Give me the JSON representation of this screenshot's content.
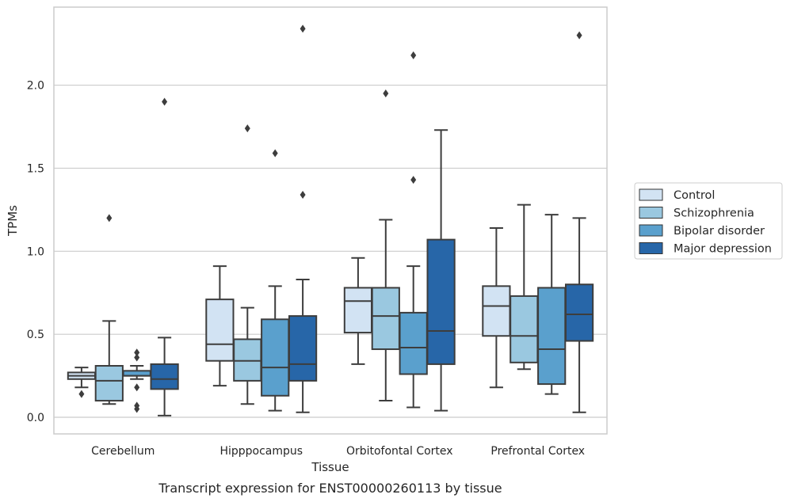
{
  "caption": "Transcript expression for ENST00000260113 by tissue",
  "chart_data": {
    "type": "box",
    "xlabel": "Tissue",
    "ylabel": "TPMs",
    "ylim": [
      -0.1,
      2.47
    ],
    "yticks": [
      0.0,
      0.5,
      1.0,
      1.5,
      2.0
    ],
    "ytick_labels": [
      "0.0",
      "0.5",
      "1.0",
      "1.5",
      "2.0"
    ],
    "grid": "horizontal",
    "legend_position": "right-outside",
    "categories": [
      "Cerebellum",
      "Hipppocampus",
      "Orbitofontal Cortex",
      "Prefrontal Cortex"
    ],
    "series": [
      {
        "name": "Control",
        "color": "#d2e3f3",
        "boxes": [
          {
            "whislo": 0.18,
            "q1": 0.23,
            "med": 0.25,
            "q3": 0.27,
            "whishi": 0.3,
            "fliers": [
              0.14
            ]
          },
          {
            "whislo": 0.19,
            "q1": 0.34,
            "med": 0.44,
            "q3": 0.71,
            "whishi": 0.91,
            "fliers": []
          },
          {
            "whislo": 0.32,
            "q1": 0.51,
            "med": 0.7,
            "q3": 0.78,
            "whishi": 0.96,
            "fliers": []
          },
          {
            "whislo": 0.18,
            "q1": 0.49,
            "med": 0.67,
            "q3": 0.79,
            "whishi": 1.14,
            "fliers": []
          }
        ]
      },
      {
        "name": "Schizophrenia",
        "color": "#9ac8e0",
        "boxes": [
          {
            "whislo": 0.08,
            "q1": 0.1,
            "med": 0.22,
            "q3": 0.31,
            "whishi": 0.58,
            "fliers": [
              1.2
            ]
          },
          {
            "whislo": 0.08,
            "q1": 0.22,
            "med": 0.34,
            "q3": 0.47,
            "whishi": 0.66,
            "fliers": [
              1.74
            ]
          },
          {
            "whislo": 0.1,
            "q1": 0.41,
            "med": 0.61,
            "q3": 0.78,
            "whishi": 1.19,
            "fliers": [
              1.95
            ]
          },
          {
            "whislo": 0.29,
            "q1": 0.33,
            "med": 0.49,
            "q3": 0.73,
            "whishi": 1.28,
            "fliers": []
          }
        ]
      },
      {
        "name": "Bipolar disorder",
        "color": "#5aa0cd",
        "boxes": [
          {
            "whislo": 0.23,
            "q1": 0.25,
            "med": 0.25,
            "q3": 0.28,
            "whishi": 0.31,
            "fliers": [
              0.39,
              0.36,
              0.18,
              0.07,
              0.05
            ]
          },
          {
            "whislo": 0.04,
            "q1": 0.13,
            "med": 0.3,
            "q3": 0.59,
            "whishi": 0.79,
            "fliers": [
              1.59
            ]
          },
          {
            "whislo": 0.06,
            "q1": 0.26,
            "med": 0.42,
            "q3": 0.63,
            "whishi": 0.91,
            "fliers": [
              1.43,
              2.18
            ]
          },
          {
            "whislo": 0.14,
            "q1": 0.2,
            "med": 0.41,
            "q3": 0.78,
            "whishi": 1.22,
            "fliers": []
          }
        ]
      },
      {
        "name": "Major depression",
        "color": "#2766a8",
        "boxes": [
          {
            "whislo": 0.01,
            "q1": 0.17,
            "med": 0.23,
            "q3": 0.32,
            "whishi": 0.48,
            "fliers": [
              1.9
            ]
          },
          {
            "whislo": 0.03,
            "q1": 0.22,
            "med": 0.32,
            "q3": 0.61,
            "whishi": 0.83,
            "fliers": [
              1.34,
              2.34
            ]
          },
          {
            "whislo": 0.04,
            "q1": 0.32,
            "med": 0.52,
            "q3": 1.07,
            "whishi": 1.73,
            "fliers": []
          },
          {
            "whislo": 0.03,
            "q1": 0.46,
            "med": 0.62,
            "q3": 0.8,
            "whishi": 1.2,
            "fliers": [
              2.3
            ]
          }
        ]
      }
    ]
  }
}
